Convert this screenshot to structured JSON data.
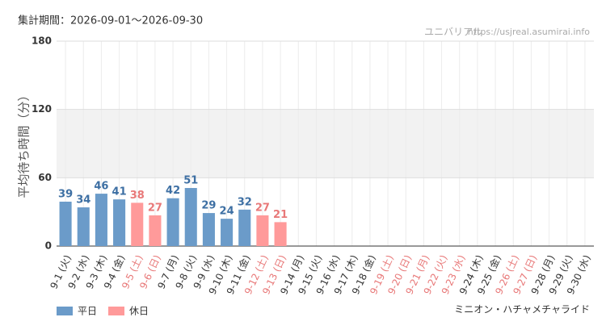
{
  "chart_data": {
    "type": "bar",
    "period_label": "集計期間：2026-09-01～2026-09-30",
    "site_name": "ユニバリアル",
    "site_url": "https://usjreal.asumirai.info",
    "ylabel": "平均待ち時間（分）",
    "attraction": "ミニオン・ハチャメチャライド",
    "categories": [
      "9-1 (火)",
      "9-2 (水)",
      "9-3 (木)",
      "9-4 (金)",
      "9-5 (土)",
      "9-6 (日)",
      "9-7 (月)",
      "9-8 (火)",
      "9-9 (水)",
      "9-10 (木)",
      "9-11 (金)",
      "9-12 (土)",
      "9-13 (日)",
      "9-14 (月)",
      "9-15 (火)",
      "9-16 (水)",
      "9-17 (木)",
      "9-18 (金)",
      "9-19 (土)",
      "9-20 (日)",
      "9-21 (月)",
      "9-22 (火)",
      "9-23 (水)",
      "9-24 (木)",
      "9-25 (金)",
      "9-26 (土)",
      "9-27 (日)",
      "9-28 (月)",
      "9-29 (火)",
      "9-30 (水)"
    ],
    "category_colors": [
      "#333",
      "#333",
      "#333",
      "#333",
      "#e87878",
      "#e87878",
      "#333",
      "#333",
      "#333",
      "#333",
      "#333",
      "#e87878",
      "#e87878",
      "#333",
      "#333",
      "#333",
      "#333",
      "#333",
      "#e87878",
      "#e87878",
      "#e87878",
      "#e87878",
      "#e87878",
      "#333",
      "#333",
      "#e87878",
      "#e87878",
      "#333",
      "#333",
      "#333"
    ],
    "series": [
      {
        "name": "平日",
        "color": "#6b9bc9",
        "label_color": "#3d6fa3",
        "values": [
          39,
          34,
          46,
          41,
          null,
          null,
          42,
          51,
          29,
          24,
          32,
          null,
          null,
          null,
          null,
          null,
          null,
          null,
          null,
          null,
          null,
          null,
          null,
          null,
          null,
          null,
          null,
          null,
          null,
          null
        ]
      },
      {
        "name": "休日",
        "color": "#ff9a9a",
        "label_color": "#e87878",
        "values": [
          null,
          null,
          null,
          null,
          38,
          27,
          null,
          null,
          null,
          null,
          null,
          27,
          21,
          null,
          null,
          null,
          null,
          null,
          null,
          null,
          null,
          null,
          null,
          null,
          null,
          null,
          null,
          null,
          null,
          null
        ]
      }
    ],
    "ylim": [
      0,
      180
    ],
    "yticks": [
      0,
      60,
      120,
      180
    ],
    "shaded_range": [
      60,
      120
    ],
    "grid": true
  }
}
